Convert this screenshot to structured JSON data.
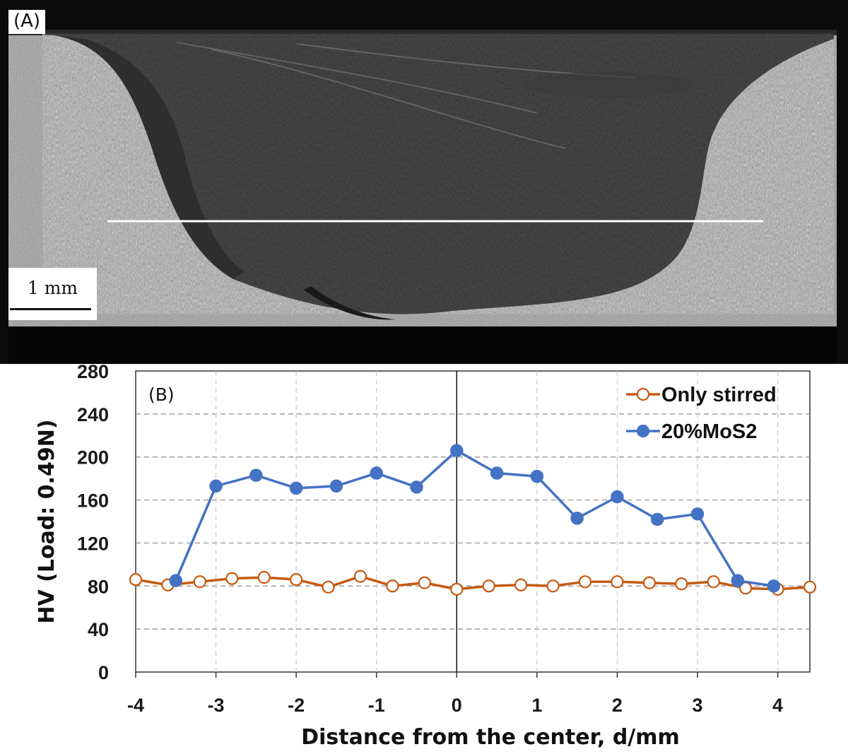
{
  "panel_a": {
    "label": "(A)",
    "scale_bar": "1 mm"
  },
  "chart_data": {
    "type": "line",
    "panel_label": "(B)",
    "xlabel": "Distance from the center, d/mm",
    "ylabel": "HV (Load: 0.49N)",
    "xlim": [
      -4,
      4.4
    ],
    "ylim": [
      0,
      280
    ],
    "x_ticks": [
      -4,
      -3,
      -2,
      -1,
      0,
      1,
      2,
      3,
      4
    ],
    "y_ticks": [
      0,
      40,
      80,
      120,
      160,
      200,
      240,
      280
    ],
    "x_tick_labels": [
      "-4",
      "-3",
      "-2",
      "-1",
      "0",
      "1",
      "2",
      "3",
      "4"
    ],
    "y_tick_labels": [
      "0",
      "40",
      "80",
      "120",
      "160",
      "200",
      "240",
      "280"
    ],
    "grid": "dashed, both axes",
    "legend_position": "top-right",
    "series": [
      {
        "name": "Only stirred",
        "color": "#c55a11",
        "marker": "open-circle",
        "x": [
          -4.0,
          -3.6,
          -3.2,
          -2.8,
          -2.4,
          -2.0,
          -1.6,
          -1.2,
          -0.8,
          -0.4,
          0.0,
          0.4,
          0.8,
          1.2,
          1.6,
          2.0,
          2.4,
          2.8,
          3.2,
          3.6,
          4.0,
          4.4
        ],
        "y": [
          86,
          81,
          84,
          87,
          88,
          86,
          79,
          89,
          80,
          83,
          77,
          80,
          81,
          80,
          84,
          84,
          83,
          82,
          84,
          78,
          77,
          79
        ]
      },
      {
        "name": "20%MoS2",
        "color": "#4472c4",
        "marker": "filled-circle",
        "x": [
          -3.5,
          -3.0,
          -2.5,
          -2.0,
          -1.5,
          -1.0,
          -0.5,
          0.0,
          0.5,
          1.0,
          1.5,
          2.0,
          2.5,
          3.0,
          3.5,
          3.95
        ],
        "y": [
          85,
          173,
          183,
          171,
          173,
          185,
          172,
          206,
          185,
          182,
          143,
          163,
          142,
          147,
          85,
          80
        ]
      }
    ]
  }
}
